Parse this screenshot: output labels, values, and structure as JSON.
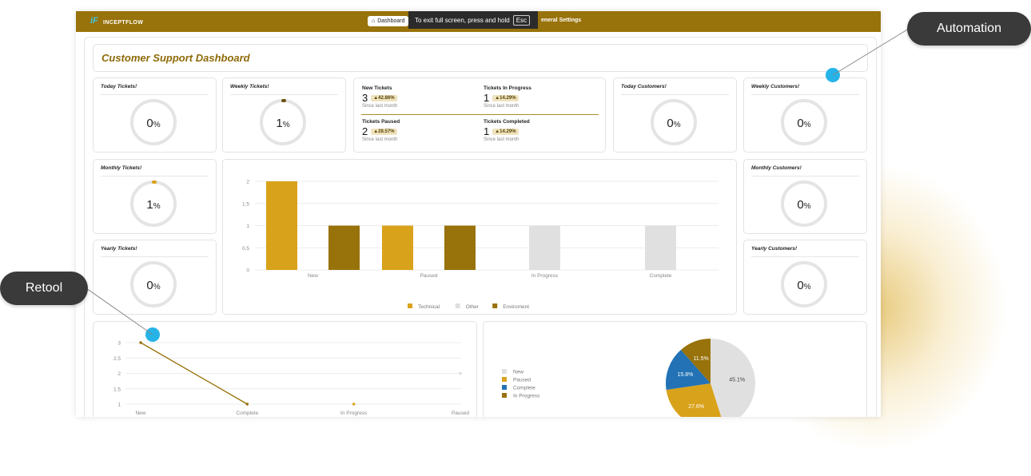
{
  "app": {
    "logo_mark": "iF",
    "logo_text": "INCEPTFLOW",
    "nav": {
      "dashboard": "Dashboard",
      "settings": "eneral Settings"
    },
    "fullscreen_notice": {
      "text": "To exit full screen, press and hold",
      "key": "Esc"
    }
  },
  "page": {
    "title": "Customer Support Dashboard"
  },
  "gauges": {
    "today_tickets": {
      "title": "Today Tickets!",
      "value": "0",
      "unit": "%"
    },
    "weekly_tickets": {
      "title": "Weekly Tickets!",
      "value": "1",
      "unit": "%"
    },
    "monthly_tickets": {
      "title": "Monthly Tickets!",
      "value": "1",
      "unit": "%"
    },
    "yearly_tickets": {
      "title": "Yearly Tickets!",
      "value": "0",
      "unit": "%"
    },
    "today_customers": {
      "title": "Today Customers!",
      "value": "0",
      "unit": "%"
    },
    "weekly_customers": {
      "title": "Weekly Customers!",
      "value": "0",
      "unit": "%"
    },
    "monthly_customers": {
      "title": "Monthly Customers!",
      "value": "0",
      "unit": "%"
    },
    "yearly_customers": {
      "title": "Yearly Customers!",
      "value": "0",
      "unit": "%"
    }
  },
  "stats": [
    {
      "label": "New Tickets",
      "value": "3",
      "change": "▲42.86%",
      "sub": "Since last month"
    },
    {
      "label": "Tickets In Progress",
      "value": "1",
      "change": "▲14.29%",
      "sub": "Since last month"
    },
    {
      "label": "Tickets Paused",
      "value": "2",
      "change": "▲28.57%",
      "sub": "Since last month"
    },
    {
      "label": "Tickets Completed",
      "value": "1",
      "change": "▲14.29%",
      "sub": "Since last month"
    }
  ],
  "chart_data": [
    {
      "type": "bar",
      "categories": [
        "New",
        "Paused",
        "In Progress",
        "Complete"
      ],
      "series": [
        {
          "name": "Technical",
          "color": "#d9a21b",
          "values": [
            2,
            1,
            0,
            0
          ]
        },
        {
          "name": "Other",
          "color": "#e0e0e0",
          "values": [
            0,
            0,
            1,
            1
          ]
        },
        {
          "name": "Enviroment",
          "color": "#98720a",
          "values": [
            1,
            1,
            0,
            0
          ]
        }
      ],
      "yticks": [
        "0",
        "0.5",
        "1",
        "1.5",
        "2"
      ],
      "ylim": [
        0,
        2
      ],
      "legend": "bottom"
    },
    {
      "type": "line",
      "categories": [
        "New",
        "Complete",
        "In Progress",
        "Paused"
      ],
      "values": [
        3,
        1,
        1,
        2
      ],
      "yticks": [
        "1",
        "1.5",
        "2",
        "2.5",
        "3"
      ],
      "ylim": [
        1,
        3
      ]
    },
    {
      "type": "pie",
      "slices": [
        {
          "name": "New",
          "value": 45.1,
          "label": "45.1%",
          "color": "#e0e0e0"
        },
        {
          "name": "Paused",
          "value": 27.6,
          "label": "27.6%",
          "color": "#d9a21b"
        },
        {
          "name": "Complete",
          "value": 15.8,
          "label": "15.8%",
          "color": "#2272b5"
        },
        {
          "name": "In Progress",
          "value": 11.5,
          "label": "11.5%",
          "color": "#98720a"
        }
      ],
      "legend": "left"
    }
  ],
  "callouts": {
    "automation": "Automation",
    "retool": "Retool"
  },
  "colors": {
    "accent": "#98720a",
    "gold": "#d9a21b",
    "callout_bg": "#3a3a3a",
    "dot": "#26b4e8"
  }
}
